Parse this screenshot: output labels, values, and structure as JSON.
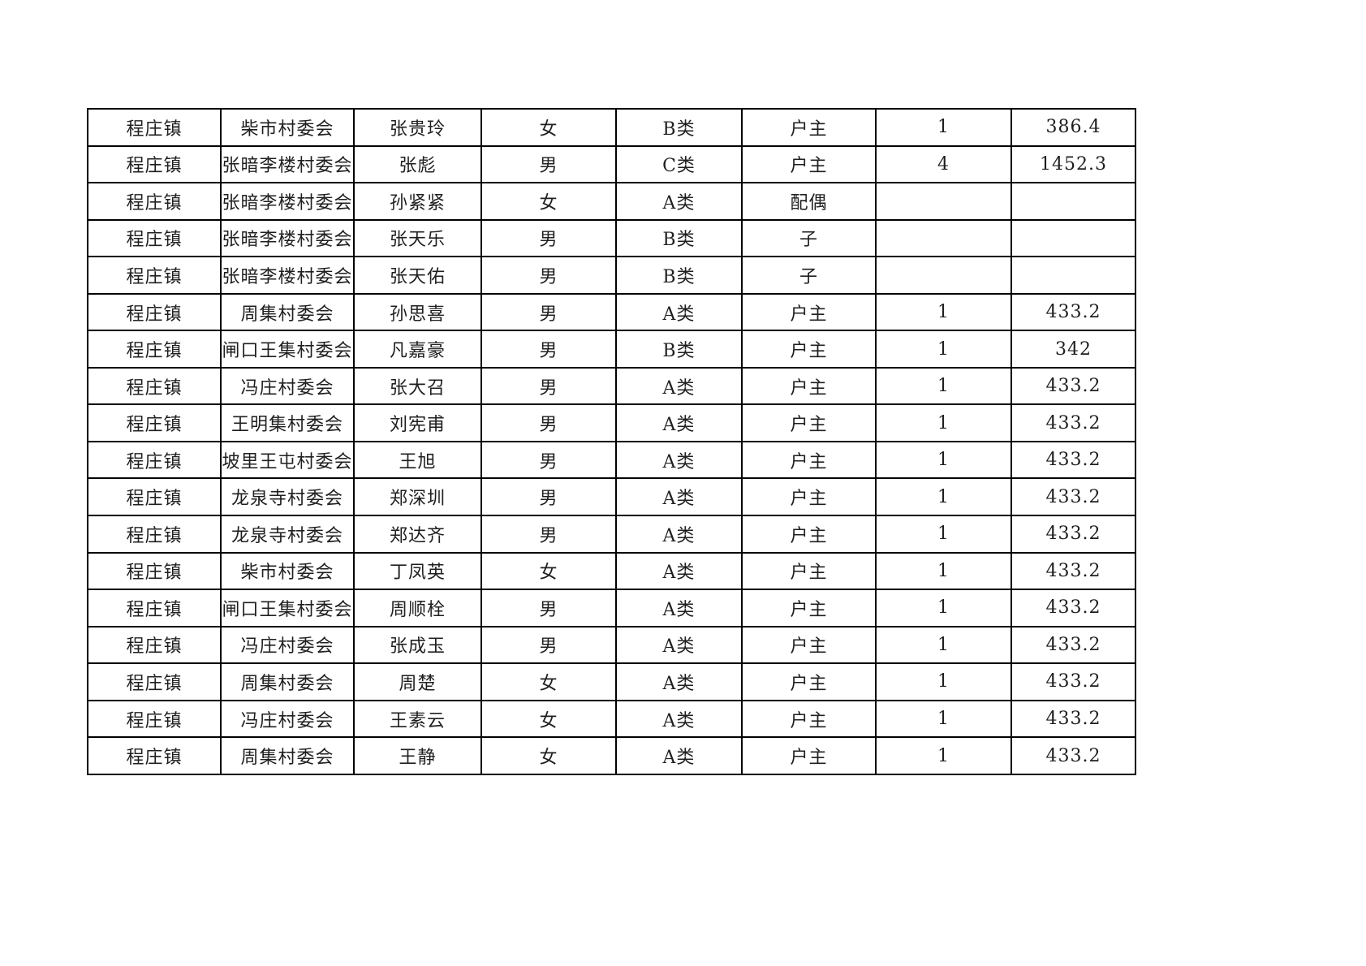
{
  "colors": {
    "background": "#ffffff",
    "border": "#000000",
    "text": "#1f1f1f"
  },
  "table": {
    "rows": [
      {
        "town": "程庄镇",
        "village": "柴市村委会",
        "name": "张贵玲",
        "gender": "女",
        "category": "B类",
        "relation": "户主",
        "count": "1",
        "amount": "386.4"
      },
      {
        "town": "程庄镇",
        "village": "张暗李楼村委会",
        "name": "张彪",
        "gender": "男",
        "category": "C类",
        "relation": "户主",
        "count": "4",
        "amount": "1452.3"
      },
      {
        "town": "程庄镇",
        "village": "张暗李楼村委会",
        "name": "孙紧紧",
        "gender": "女",
        "category": "A类",
        "relation": "配偶",
        "count": "",
        "amount": ""
      },
      {
        "town": "程庄镇",
        "village": "张暗李楼村委会",
        "name": "张天乐",
        "gender": "男",
        "category": "B类",
        "relation": "子",
        "count": "",
        "amount": ""
      },
      {
        "town": "程庄镇",
        "village": "张暗李楼村委会",
        "name": "张天佑",
        "gender": "男",
        "category": "B类",
        "relation": "子",
        "count": "",
        "amount": ""
      },
      {
        "town": "程庄镇",
        "village": "周集村委会",
        "name": "孙思喜",
        "gender": "男",
        "category": "A类",
        "relation": "户主",
        "count": "1",
        "amount": "433.2"
      },
      {
        "town": "程庄镇",
        "village": "闸口王集村委会",
        "name": "凡嘉豪",
        "gender": "男",
        "category": "B类",
        "relation": "户主",
        "count": "1",
        "amount": "342"
      },
      {
        "town": "程庄镇",
        "village": "冯庄村委会",
        "name": "张大召",
        "gender": "男",
        "category": "A类",
        "relation": "户主",
        "count": "1",
        "amount": "433.2"
      },
      {
        "town": "程庄镇",
        "village": "王明集村委会",
        "name": "刘宪甫",
        "gender": "男",
        "category": "A类",
        "relation": "户主",
        "count": "1",
        "amount": "433.2"
      },
      {
        "town": "程庄镇",
        "village": "坡里王屯村委会",
        "name": "王旭",
        "gender": "男",
        "category": "A类",
        "relation": "户主",
        "count": "1",
        "amount": "433.2"
      },
      {
        "town": "程庄镇",
        "village": "龙泉寺村委会",
        "name": "郑深圳",
        "gender": "男",
        "category": "A类",
        "relation": "户主",
        "count": "1",
        "amount": "433.2"
      },
      {
        "town": "程庄镇",
        "village": "龙泉寺村委会",
        "name": "郑达齐",
        "gender": "男",
        "category": "A类",
        "relation": "户主",
        "count": "1",
        "amount": "433.2"
      },
      {
        "town": "程庄镇",
        "village": "柴市村委会",
        "name": "丁凤英",
        "gender": "女",
        "category": "A类",
        "relation": "户主",
        "count": "1",
        "amount": "433.2"
      },
      {
        "town": "程庄镇",
        "village": "闸口王集村委会",
        "name": "周顺栓",
        "gender": "男",
        "category": "A类",
        "relation": "户主",
        "count": "1",
        "amount": "433.2"
      },
      {
        "town": "程庄镇",
        "village": "冯庄村委会",
        "name": "张成玉",
        "gender": "男",
        "category": "A类",
        "relation": "户主",
        "count": "1",
        "amount": "433.2"
      },
      {
        "town": "程庄镇",
        "village": "周集村委会",
        "name": "周楚",
        "gender": "女",
        "category": "A类",
        "relation": "户主",
        "count": "1",
        "amount": "433.2"
      },
      {
        "town": "程庄镇",
        "village": "冯庄村委会",
        "name": "王素云",
        "gender": "女",
        "category": "A类",
        "relation": "户主",
        "count": "1",
        "amount": "433.2"
      },
      {
        "town": "程庄镇",
        "village": "周集村委会",
        "name": "王静",
        "gender": "女",
        "category": "A类",
        "relation": "户主",
        "count": "1",
        "amount": "433.2"
      }
    ]
  }
}
